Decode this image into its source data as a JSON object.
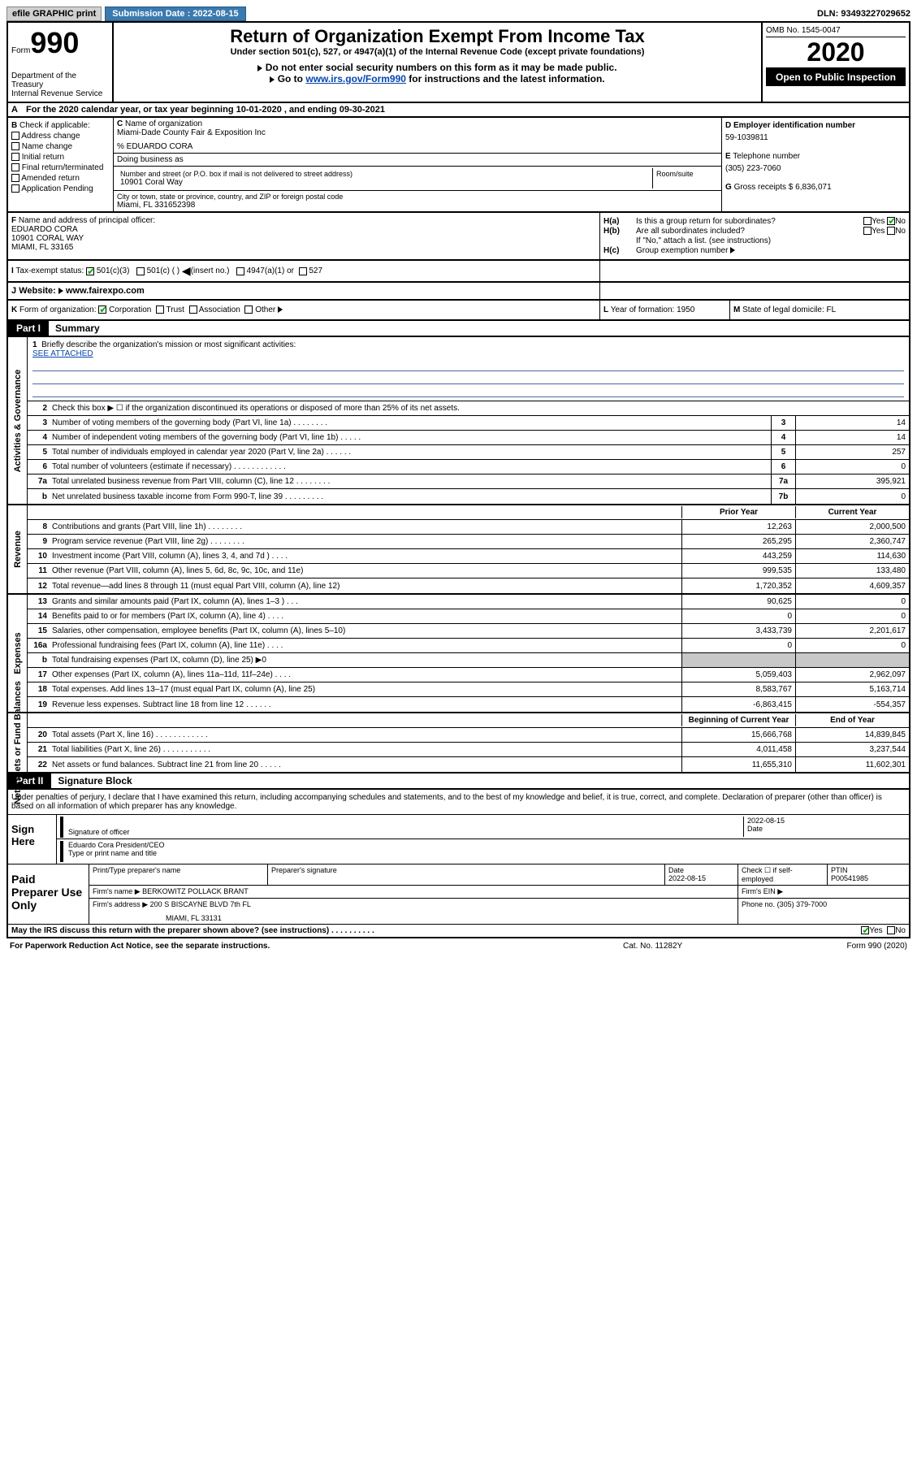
{
  "topbar": {
    "efile": "efile GRAPHIC print",
    "submission_label": "Submission Date : 2022-08-15",
    "dln": "DLN: 93493227029652"
  },
  "header": {
    "form_word": "Form",
    "form_num": "990",
    "dept": "Department of the Treasury",
    "irs": "Internal Revenue Service",
    "title": "Return of Organization Exempt From Income Tax",
    "sub": "Under section 501(c), 527, or 4947(a)(1) of the Internal Revenue Code (except private foundations)",
    "note1": "Do not enter social security numbers on this form as it may be made public.",
    "note2_pre": "Go to ",
    "note2_link": "www.irs.gov/Form990",
    "note2_post": " for instructions and the latest information.",
    "omb": "OMB No. 1545-0047",
    "year": "2020",
    "open": "Open to Public Inspection"
  },
  "rowA": "For the 2020 calendar year, or tax year beginning 10-01-2020      , and ending 09-30-2021",
  "sectionB": {
    "label": "Check if applicable:",
    "items": [
      "Address change",
      "Name change",
      "Initial return",
      "Final return/terminated",
      "Amended return",
      "Application Pending"
    ]
  },
  "sectionC": {
    "name_label": "Name of organization",
    "name": "Miami-Dade County Fair & Exposition Inc",
    "care_of": "% EDUARDO CORA",
    "dba_label": "Doing business as",
    "addr_label": "Number and street (or P.O. box if mail is not delivered to street address)",
    "addr": "10901 Coral Way",
    "room_label": "Room/suite",
    "city_label": "City or town, state or province, country, and ZIP or foreign postal code",
    "city": "Miami, FL  331652398"
  },
  "sectionD": {
    "ein_label": "Employer identification number",
    "ein": "59-1039811",
    "phone_label": "Telephone number",
    "phone": "(305) 223-7060",
    "gross_label": "Gross receipts $",
    "gross": "6,836,071"
  },
  "sectionF": {
    "label": "Name and address of principal officer:",
    "name": "EDUARDO CORA",
    "addr": "10901 CORAL WAY",
    "city": "MIAMI, FL  33165"
  },
  "sectionH": {
    "a_label": "H(a)",
    "a_text": "Is this a group return for subordinates?",
    "a_yes": "Yes",
    "a_no": "No",
    "b_label": "H(b)",
    "b_text": "Are all subordinates included?",
    "b_note": "If \"No,\" attach a list. (see instructions)",
    "c_label": "H(c)",
    "c_text": "Group exemption number"
  },
  "rowI": {
    "label": "Tax-exempt status:",
    "c3": "501(c)(3)",
    "c_blank": "501(c) (   )",
    "c_insert": "(insert no.)",
    "a1": "4947(a)(1) or",
    "s527": "527"
  },
  "rowJ": {
    "label": "Website:",
    "url": "www.fairexpo.com"
  },
  "rowK": {
    "label": "Form of organization:",
    "corp": "Corporation",
    "trust": "Trust",
    "assoc": "Association",
    "other": "Other"
  },
  "rowL": {
    "label": "Year of formation:",
    "val": "1950"
  },
  "rowM": {
    "label": "State of legal domicile:",
    "val": "FL"
  },
  "part1": {
    "tab": "Part I",
    "title": "Summary"
  },
  "activities": {
    "vert": "Activities & Governance",
    "line1_label": "Briefly describe the organization's mission or most significant activities:",
    "line1_val": "SEE ATTACHED",
    "line2": "Check this box ▶ ☐  if the organization discontinued its operations or disposed of more than 25% of its net assets.",
    "lines": [
      {
        "n": "3",
        "t": "Number of voting members of the governing body (Part VI, line 1a)  .    .    .    .    .    .    .    .",
        "box": "3",
        "v": "14"
      },
      {
        "n": "4",
        "t": "Number of independent voting members of the governing body (Part VI, line 1b)  .    .    .    .    .",
        "box": "4",
        "v": "14"
      },
      {
        "n": "5",
        "t": "Total number of individuals employed in calendar year 2020 (Part V, line 2a)  .    .    .    .    .    .",
        "box": "5",
        "v": "257"
      },
      {
        "n": "6",
        "t": "Total number of volunteers (estimate if necessary)  .    .    .    .    .    .    .    .    .    .    .    .",
        "box": "6",
        "v": "0"
      },
      {
        "n": "7a",
        "t": "Total unrelated business revenue from Part VIII, column (C), line 12  .    .    .    .    .    .    .    .",
        "box": "7a",
        "v": "395,921"
      },
      {
        "n": "b",
        "t": "Net unrelated business taxable income from Form 990-T, line 39  .    .    .    .    .    .    .    .    .",
        "box": "7b",
        "v": "0"
      }
    ]
  },
  "revenue": {
    "vert": "Revenue",
    "prior": "Prior Year",
    "current": "Current Year",
    "lines": [
      {
        "n": "8",
        "t": "Contributions and grants (Part VIII, line 1h)  .    .    .    .    .    .    .    .",
        "p": "12,263",
        "c": "2,000,500"
      },
      {
        "n": "9",
        "t": "Program service revenue (Part VIII, line 2g)  .    .    .    .    .    .    .    .",
        "p": "265,295",
        "c": "2,360,747"
      },
      {
        "n": "10",
        "t": "Investment income (Part VIII, column (A), lines 3, 4, and 7d )  .    .    .    .",
        "p": "443,259",
        "c": "114,630"
      },
      {
        "n": "11",
        "t": "Other revenue (Part VIII, column (A), lines 5, 6d, 8c, 9c, 10c, and 11e)",
        "p": "999,535",
        "c": "133,480"
      },
      {
        "n": "12",
        "t": "Total revenue—add lines 8 through 11 (must equal Part VIII, column (A), line 12)",
        "p": "1,720,352",
        "c": "4,609,357"
      }
    ]
  },
  "expenses": {
    "vert": "Expenses",
    "lines": [
      {
        "n": "13",
        "t": "Grants and similar amounts paid (Part IX, column (A), lines 1–3 )  .    .    .",
        "p": "90,625",
        "c": "0"
      },
      {
        "n": "14",
        "t": "Benefits paid to or for members (Part IX, column (A), line 4)  .    .    .    .",
        "p": "0",
        "c": "0"
      },
      {
        "n": "15",
        "t": "Salaries, other compensation, employee benefits (Part IX, column (A), lines 5–10)",
        "p": "3,433,739",
        "c": "2,201,617"
      },
      {
        "n": "16a",
        "t": "Professional fundraising fees (Part IX, column (A), line 11e)  .    .    .    .",
        "p": "0",
        "c": "0"
      },
      {
        "n": "b",
        "t": "Total fundraising expenses (Part IX, column (D), line 25) ▶0",
        "p": "",
        "c": "",
        "shaded": true
      },
      {
        "n": "17",
        "t": "Other expenses (Part IX, column (A), lines 11a–11d, 11f–24e)  .    .    .    .",
        "p": "5,059,403",
        "c": "2,962,097"
      },
      {
        "n": "18",
        "t": "Total expenses. Add lines 13–17 (must equal Part IX, column (A), line 25)",
        "p": "8,583,767",
        "c": "5,163,714"
      },
      {
        "n": "19",
        "t": "Revenue less expenses. Subtract line 18 from line 12  .    .    .    .    .    .",
        "p": "-6,863,415",
        "c": "-554,357"
      }
    ]
  },
  "netassets": {
    "vert": "Net Assets or Fund Balances",
    "begin": "Beginning of Current Year",
    "end": "End of Year",
    "lines": [
      {
        "n": "20",
        "t": "Total assets (Part X, line 16)  .    .    .    .    .    .    .    .    .    .    .    .",
        "p": "15,666,768",
        "c": "14,839,845"
      },
      {
        "n": "21",
        "t": "Total liabilities (Part X, line 26)  .    .    .    .    .    .    .    .    .    .    .",
        "p": "4,011,458",
        "c": "3,237,544"
      },
      {
        "n": "22",
        "t": "Net assets or fund balances. Subtract line 21 from line 20  .    .    .    .    .",
        "p": "11,655,310",
        "c": "11,602,301"
      }
    ]
  },
  "part2": {
    "tab": "Part II",
    "title": "Signature Block"
  },
  "sig": {
    "intro": "Under penalties of perjury, I declare that I have examined this return, including accompanying schedules and statements, and to the best of my knowledge and belief, it is true, correct, and complete. Declaration of preparer (other than officer) is based on all information of which preparer has any knowledge.",
    "sign_here": "Sign Here",
    "sig_officer": "Signature of officer",
    "sig_date": "2022-08-15",
    "date_label": "Date",
    "officer_name": "Eduardo Cora  President/CEO",
    "type_label": "Type or print name and title"
  },
  "prep": {
    "label": "Paid Preparer Use Only",
    "print_label": "Print/Type preparer's name",
    "prep_sig_label": "Preparer's signature",
    "date_label": "Date",
    "date": "2022-08-15",
    "check_label": "Check ☐ if self-employed",
    "ptin_label": "PTIN",
    "ptin": "P00541985",
    "firm_name_label": "Firm's name  ▶",
    "firm_name": "BERKOWITZ POLLACK BRANT",
    "firm_ein_label": "Firm's EIN ▶",
    "firm_addr_label": "Firm's address ▶",
    "firm_addr": "200 S BISCAYNE BLVD 7th FL",
    "firm_city": "MIAMI, FL  33131",
    "phone_label": "Phone no.",
    "phone": "(305) 379-7000"
  },
  "discuss": {
    "text": "May the IRS discuss this return with the preparer shown above? (see instructions)  .    .    .    .    .    .    .    .    .    .",
    "yes": "Yes",
    "no": "No"
  },
  "footer": {
    "left": "For Paperwork Reduction Act Notice, see the separate instructions.",
    "mid": "Cat. No. 11282Y",
    "right": "Form 990 (2020)"
  }
}
